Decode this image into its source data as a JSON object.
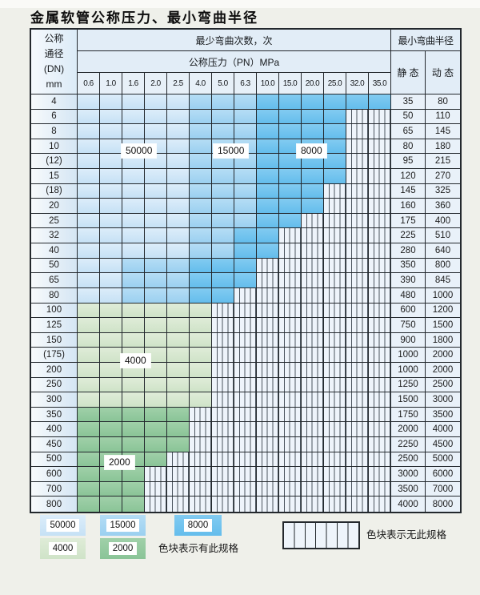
{
  "title": "金属软管公称压力、最小弯曲半径",
  "table": {
    "dn_header_lines": [
      "公称",
      "通径",
      "(DN)",
      "mm"
    ],
    "cycles_header": "最少弯曲次数，次",
    "pressure_header": "公称压力（PN）MPa",
    "radius_header": "最小弯曲半径",
    "static_label": "静 态",
    "dynamic_label": "动 态",
    "pressures": [
      "0.6",
      "1.0",
      "1.6",
      "2.0",
      "2.5",
      "4.0",
      "5.0",
      "6.3",
      "10.0",
      "15.0",
      "20.0",
      "25.0",
      "32.0",
      "35.0"
    ],
    "cell_code_meaning": {
      "L": "50000次",
      "M": "15000次",
      "D": "8000次",
      "G4": "4000次",
      "G2": "2000次",
      "X": "无此规格"
    },
    "overlays": [
      {
        "text": "50000"
      },
      {
        "text": "15000"
      },
      {
        "text": "8000"
      },
      {
        "text": "4000"
      },
      {
        "text": "2000"
      }
    ],
    "rows": [
      {
        "dn": "4",
        "cells": [
          "L",
          "L",
          "L",
          "L",
          "L",
          "M",
          "M",
          "M",
          "D",
          "D",
          "D",
          "D",
          "D",
          "D"
        ],
        "static": "35",
        "dynamic": "80"
      },
      {
        "dn": "6",
        "cells": [
          "L",
          "L",
          "L",
          "L",
          "L",
          "M",
          "M",
          "M",
          "D",
          "D",
          "D",
          "D",
          "X",
          "X"
        ],
        "static": "50",
        "dynamic": "110"
      },
      {
        "dn": "8",
        "cells": [
          "L",
          "L",
          "L",
          "L",
          "L",
          "M",
          "M",
          "M",
          "D",
          "D",
          "D",
          "D",
          "X",
          "X"
        ],
        "static": "65",
        "dynamic": "145"
      },
      {
        "dn": "10",
        "cells": [
          "L",
          "L",
          "L",
          "L",
          "L",
          "M",
          "M",
          "M",
          "D",
          "D",
          "D",
          "D",
          "X",
          "X"
        ],
        "static": "80",
        "dynamic": "180"
      },
      {
        "dn": "(12)",
        "cells": [
          "L",
          "L",
          "L",
          "L",
          "L",
          "M",
          "M",
          "M",
          "D",
          "D",
          "D",
          "D",
          "X",
          "X"
        ],
        "static": "95",
        "dynamic": "215"
      },
      {
        "dn": "15",
        "cells": [
          "L",
          "L",
          "L",
          "L",
          "L",
          "M",
          "M",
          "M",
          "D",
          "D",
          "D",
          "D",
          "X",
          "X"
        ],
        "static": "120",
        "dynamic": "270"
      },
      {
        "dn": "(18)",
        "cells": [
          "L",
          "L",
          "L",
          "L",
          "L",
          "M",
          "M",
          "M",
          "D",
          "D",
          "D",
          "X",
          "X",
          "X"
        ],
        "static": "145",
        "dynamic": "325"
      },
      {
        "dn": "20",
        "cells": [
          "L",
          "L",
          "L",
          "L",
          "L",
          "M",
          "M",
          "M",
          "D",
          "D",
          "D",
          "X",
          "X",
          "X"
        ],
        "static": "160",
        "dynamic": "360"
      },
      {
        "dn": "25",
        "cells": [
          "L",
          "L",
          "L",
          "L",
          "L",
          "M",
          "M",
          "M",
          "D",
          "D",
          "X",
          "X",
          "X",
          "X"
        ],
        "static": "175",
        "dynamic": "400"
      },
      {
        "dn": "32",
        "cells": [
          "L",
          "L",
          "L",
          "L",
          "L",
          "M",
          "M",
          "D",
          "D",
          "X",
          "X",
          "X",
          "X",
          "X"
        ],
        "static": "225",
        "dynamic": "510"
      },
      {
        "dn": "40",
        "cells": [
          "L",
          "L",
          "L",
          "L",
          "L",
          "M",
          "M",
          "D",
          "D",
          "X",
          "X",
          "X",
          "X",
          "X"
        ],
        "static": "280",
        "dynamic": "640"
      },
      {
        "dn": "50",
        "cells": [
          "L",
          "L",
          "M",
          "M",
          "M",
          "D",
          "D",
          "D",
          "X",
          "X",
          "X",
          "X",
          "X",
          "X"
        ],
        "static": "350",
        "dynamic": "800"
      },
      {
        "dn": "65",
        "cells": [
          "L",
          "L",
          "M",
          "M",
          "M",
          "D",
          "D",
          "D",
          "X",
          "X",
          "X",
          "X",
          "X",
          "X"
        ],
        "static": "390",
        "dynamic": "845"
      },
      {
        "dn": "80",
        "cells": [
          "L",
          "L",
          "M",
          "M",
          "M",
          "D",
          "D",
          "X",
          "X",
          "X",
          "X",
          "X",
          "X",
          "X"
        ],
        "static": "480",
        "dynamic": "1000"
      },
      {
        "dn": "100",
        "cells": [
          "G4",
          "G4",
          "G4",
          "G4",
          "G4",
          "G4",
          "X",
          "X",
          "X",
          "X",
          "X",
          "X",
          "X",
          "X"
        ],
        "static": "600",
        "dynamic": "1200"
      },
      {
        "dn": "125",
        "cells": [
          "G4",
          "G4",
          "G4",
          "G4",
          "G4",
          "G4",
          "X",
          "X",
          "X",
          "X",
          "X",
          "X",
          "X",
          "X"
        ],
        "static": "750",
        "dynamic": "1500"
      },
      {
        "dn": "150",
        "cells": [
          "G4",
          "G4",
          "G4",
          "G4",
          "G4",
          "G4",
          "X",
          "X",
          "X",
          "X",
          "X",
          "X",
          "X",
          "X"
        ],
        "static": "900",
        "dynamic": "1800"
      },
      {
        "dn": "(175)",
        "cells": [
          "G4",
          "G4",
          "G4",
          "G4",
          "G4",
          "G4",
          "X",
          "X",
          "X",
          "X",
          "X",
          "X",
          "X",
          "X"
        ],
        "static": "1000",
        "dynamic": "2000"
      },
      {
        "dn": "200",
        "cells": [
          "G4",
          "G4",
          "G4",
          "G4",
          "G4",
          "G4",
          "X",
          "X",
          "X",
          "X",
          "X",
          "X",
          "X",
          "X"
        ],
        "static": "1000",
        "dynamic": "2000"
      },
      {
        "dn": "250",
        "cells": [
          "G4",
          "G4",
          "G4",
          "G4",
          "G4",
          "G4",
          "X",
          "X",
          "X",
          "X",
          "X",
          "X",
          "X",
          "X"
        ],
        "static": "1250",
        "dynamic": "2500"
      },
      {
        "dn": "300",
        "cells": [
          "G4",
          "G4",
          "G4",
          "G4",
          "G4",
          "G4",
          "X",
          "X",
          "X",
          "X",
          "X",
          "X",
          "X",
          "X"
        ],
        "static": "1500",
        "dynamic": "3000"
      },
      {
        "dn": "350",
        "cells": [
          "G2",
          "G2",
          "G2",
          "G2",
          "G2",
          "X",
          "X",
          "X",
          "X",
          "X",
          "X",
          "X",
          "X",
          "X"
        ],
        "static": "1750",
        "dynamic": "3500"
      },
      {
        "dn": "400",
        "cells": [
          "G2",
          "G2",
          "G2",
          "G2",
          "G2",
          "X",
          "X",
          "X",
          "X",
          "X",
          "X",
          "X",
          "X",
          "X"
        ],
        "static": "2000",
        "dynamic": "4000"
      },
      {
        "dn": "450",
        "cells": [
          "G2",
          "G2",
          "G2",
          "G2",
          "G2",
          "X",
          "X",
          "X",
          "X",
          "X",
          "X",
          "X",
          "X",
          "X"
        ],
        "static": "2250",
        "dynamic": "4500"
      },
      {
        "dn": "500",
        "cells": [
          "G2",
          "G2",
          "G2",
          "G2",
          "X",
          "X",
          "X",
          "X",
          "X",
          "X",
          "X",
          "X",
          "X",
          "X"
        ],
        "static": "2500",
        "dynamic": "5000"
      },
      {
        "dn": "600",
        "cells": [
          "G2",
          "G2",
          "G2",
          "X",
          "X",
          "X",
          "X",
          "X",
          "X",
          "X",
          "X",
          "X",
          "X",
          "X"
        ],
        "static": "3000",
        "dynamic": "6000"
      },
      {
        "dn": "700",
        "cells": [
          "G2",
          "G2",
          "G2",
          "X",
          "X",
          "X",
          "X",
          "X",
          "X",
          "X",
          "X",
          "X",
          "X",
          "X"
        ],
        "static": "3500",
        "dynamic": "7000"
      },
      {
        "dn": "800",
        "cells": [
          "G2",
          "G2",
          "G2",
          "X",
          "X",
          "X",
          "X",
          "X",
          "X",
          "X",
          "X",
          "X",
          "X",
          "X"
        ],
        "static": "4000",
        "dynamic": "8000"
      }
    ]
  },
  "legend": {
    "swatches": [
      {
        "label": "50000",
        "cls": "L"
      },
      {
        "label": "15000",
        "cls": "M"
      },
      {
        "label": "8000",
        "cls": "D"
      },
      {
        "label": "4000",
        "cls": "G4"
      },
      {
        "label": "2000",
        "cls": "G2"
      }
    ],
    "has_spec_text": "色块表示有此规格",
    "no_spec_text": "色块表示无此规格"
  },
  "colors": {
    "blue_50000": "#cfe5f7",
    "blue_15000": "#a6d4f0",
    "blue_8000": "#6fc1ec",
    "green_4000": "#d5e6cf",
    "green_2000": "#92c89e",
    "hatch_bg": "#eef4fb",
    "border": "#23282d"
  }
}
